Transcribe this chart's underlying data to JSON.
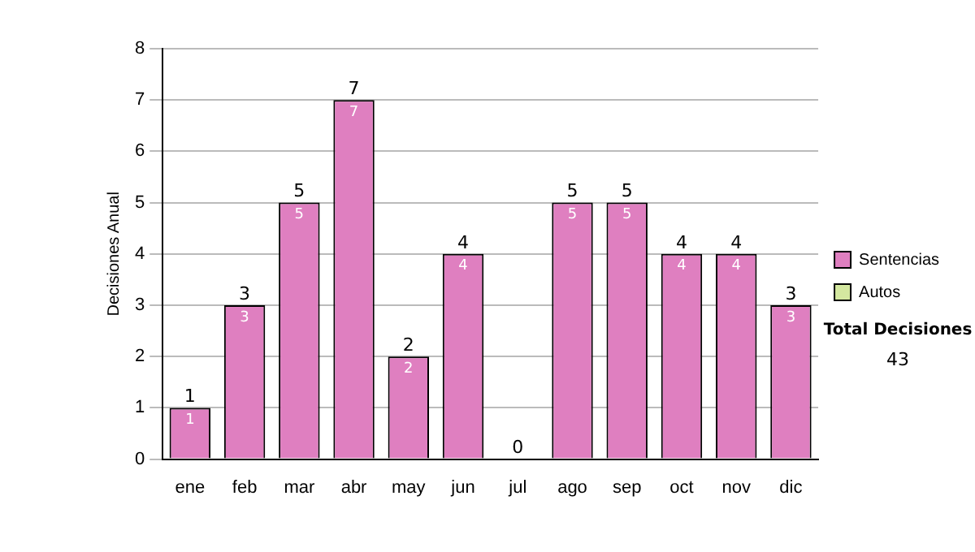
{
  "chart_data": {
    "type": "bar",
    "stacked": true,
    "ylabel": "Decisiones Anual",
    "categories": [
      "ene",
      "feb",
      "mar",
      "abr",
      "may",
      "jun",
      "jul",
      "ago",
      "sep",
      "oct",
      "nov",
      "dic"
    ],
    "series": [
      {
        "name": "Sentencias",
        "color": "#df7fc0",
        "values": [
          1,
          3,
          5,
          7,
          2,
          4,
          0,
          5,
          5,
          4,
          4,
          3
        ],
        "value_labels": [
          "1",
          "3",
          "5",
          "7",
          "2",
          "4",
          null,
          "5",
          "5",
          "4",
          "4",
          "3"
        ]
      },
      {
        "name": "Autos",
        "color": "#d4e8a0",
        "values": [
          0,
          0,
          0,
          0,
          0,
          0,
          0,
          0,
          0,
          0,
          0,
          0
        ]
      }
    ],
    "totals": [
      "1",
      "3",
      "5",
      "7",
      "2",
      "4",
      "0",
      "5",
      "5",
      "4",
      "4",
      "3"
    ],
    "ylim": [
      0,
      8
    ],
    "yticks": [
      0,
      1,
      2,
      3,
      4,
      5,
      6,
      7,
      8
    ],
    "grid": "y",
    "legend": "right",
    "annotations": [
      "Total Decisiones",
      "43"
    ]
  }
}
